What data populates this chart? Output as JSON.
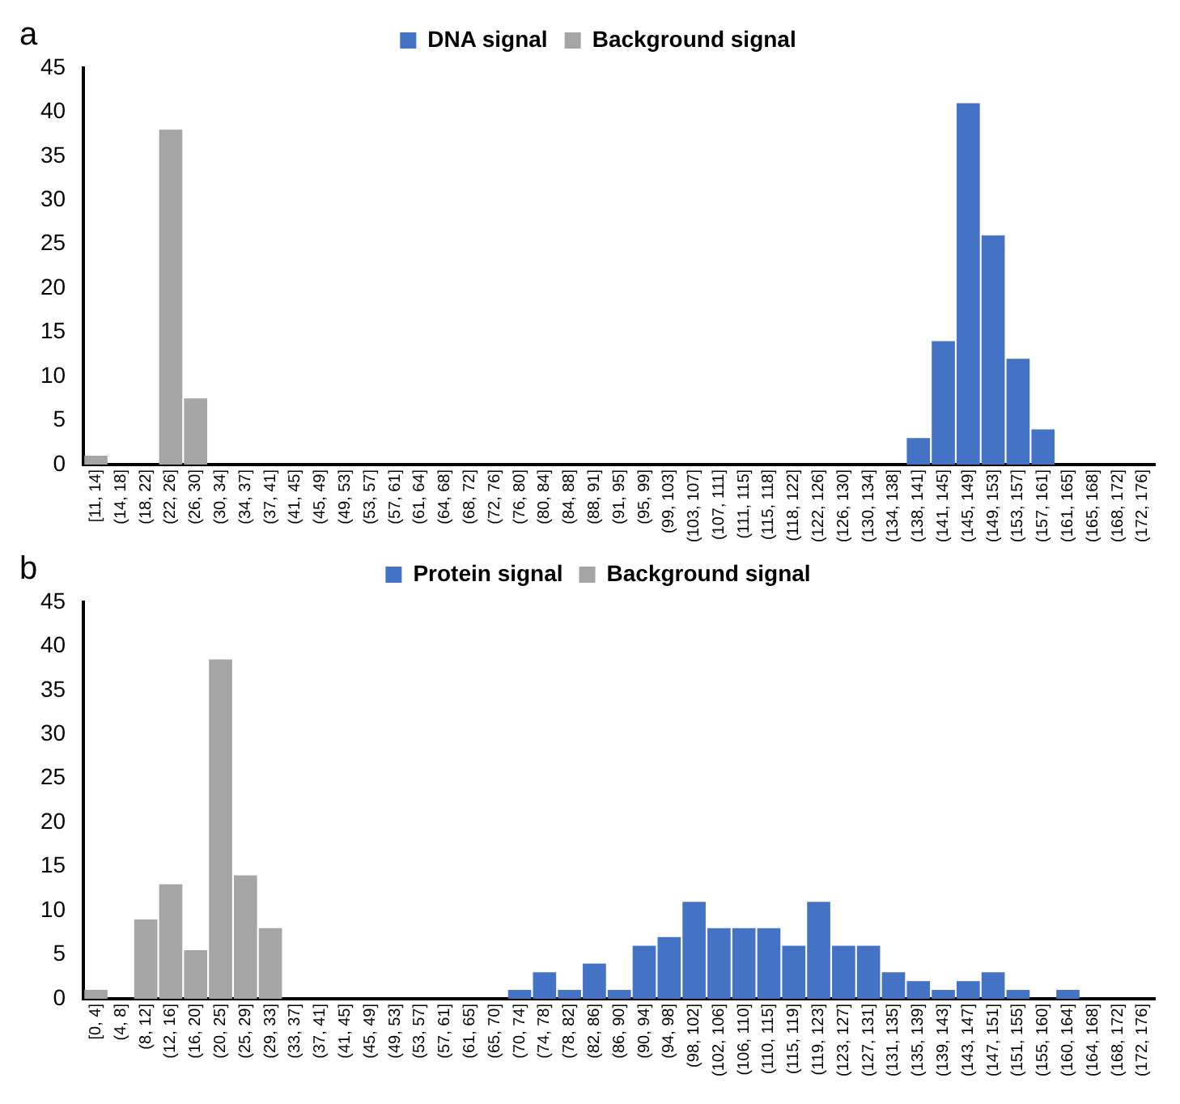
{
  "chart_data": [
    {
      "type": "bar",
      "annotations": [
        "a"
      ],
      "stacked": true,
      "legend": "top",
      "grid": false,
      "categories": [
        "[11, 14]",
        "(14, 18]",
        "(18, 22]",
        "(22, 26]",
        "(26, 30]",
        "(30, 34]",
        "(34, 37]",
        "(37, 41]",
        "(41, 45]",
        "(45, 49]",
        "(49, 53]",
        "(53, 57]",
        "(57, 61]",
        "(61, 64]",
        "(64, 68]",
        "(68, 72]",
        "(72, 76]",
        "(76, 80]",
        "(80, 84]",
        "(84, 88]",
        "(88, 91]",
        "(91, 95]",
        "(95, 99]",
        "(99, 103]",
        "(103, 107]",
        "(107, 111]",
        "(111, 115]",
        "(115, 118]",
        "(118, 122]",
        "(122, 126]",
        "(126, 130]",
        "(130, 134]",
        "(134, 138]",
        "(138, 141]",
        "(141, 145]",
        "(145, 149]",
        "(149, 153]",
        "(153, 157]",
        "(157, 161]",
        "(161, 165]",
        "(165, 168]",
        "(168, 172]",
        "(172, 176]"
      ],
      "series": [
        {
          "name": "DNA signal",
          "color": "#4472c4",
          "values": [
            0,
            0,
            0,
            0,
            0,
            0,
            0,
            0,
            0,
            0,
            0,
            0,
            0,
            0,
            0,
            0,
            0,
            0,
            0,
            0,
            0,
            0,
            0,
            0,
            0,
            0,
            0,
            0,
            0,
            0,
            0,
            0,
            0,
            3,
            14,
            41,
            26,
            12,
            4,
            0,
            0,
            0,
            0
          ]
        },
        {
          "name": "Background signal",
          "color": "#a5a5a5",
          "values": [
            1,
            0,
            0,
            38,
            7.5,
            0,
            0,
            0,
            0,
            0,
            0,
            0,
            0,
            0,
            0,
            0,
            0,
            0,
            0,
            0,
            0,
            0,
            0,
            0,
            0,
            0,
            0,
            0,
            0,
            0,
            0,
            0,
            0,
            0,
            0,
            0,
            0,
            0,
            0,
            0,
            0,
            0,
            0
          ]
        }
      ],
      "ylim": [
        0,
        45
      ],
      "yticks": [
        0,
        5,
        10,
        15,
        20,
        25,
        30,
        35,
        40,
        45
      ]
    },
    {
      "type": "bar",
      "annotations": [
        "b"
      ],
      "stacked": true,
      "legend": "top",
      "grid": false,
      "categories": [
        "[0, 4]",
        "(4, 8]",
        "(8, 12]",
        "(12, 16]",
        "(16, 20]",
        "(20, 25]",
        "(25, 29]",
        "(29, 33]",
        "(33, 37]",
        "(37, 41]",
        "(41, 45]",
        "(45, 49]",
        "(49, 53]",
        "(53, 57]",
        "(57, 61]",
        "(61, 65]",
        "(65, 70]",
        "(70, 74]",
        "(74, 78]",
        "(78, 82]",
        "(82, 86]",
        "(86, 90]",
        "(90, 94]",
        "(94, 98]",
        "(98, 102]",
        "(102, 106]",
        "(106, 110]",
        "(110, 115]",
        "(115, 119]",
        "(119, 123]",
        "(123, 127]",
        "(127, 131]",
        "(131, 135]",
        "(135, 139]",
        "(139, 143]",
        "(143, 147]",
        "(147, 151]",
        "(151, 155]",
        "(155, 160]",
        "(160, 164]",
        "(164, 168]",
        "(168, 172]",
        "(172, 176]"
      ],
      "series": [
        {
          "name": "Protein signal",
          "color": "#4472c4",
          "values": [
            0,
            0,
            0,
            0,
            0,
            0,
            0,
            0,
            0,
            0,
            0,
            0,
            0,
            0,
            0,
            0,
            0,
            1,
            3,
            1,
            4,
            1,
            6,
            7,
            11,
            8,
            8,
            8,
            6,
            11,
            6,
            6,
            3,
            2,
            1,
            2,
            3,
            1,
            0,
            1,
            0,
            0,
            0
          ]
        },
        {
          "name": "Background signal",
          "color": "#a5a5a5",
          "values": [
            1,
            0,
            9,
            13,
            5.5,
            38.5,
            14,
            8,
            0,
            0,
            0,
            0,
            0,
            0,
            0,
            0,
            0,
            0,
            0,
            0,
            0,
            0,
            0,
            0,
            0,
            0,
            0,
            0,
            0,
            0,
            0,
            0,
            0,
            0,
            0,
            0,
            0,
            0,
            0,
            0,
            0,
            0,
            0
          ]
        }
      ],
      "ylim": [
        0,
        45
      ],
      "yticks": [
        0,
        5,
        10,
        15,
        20,
        25,
        30,
        35,
        40,
        45
      ]
    }
  ]
}
